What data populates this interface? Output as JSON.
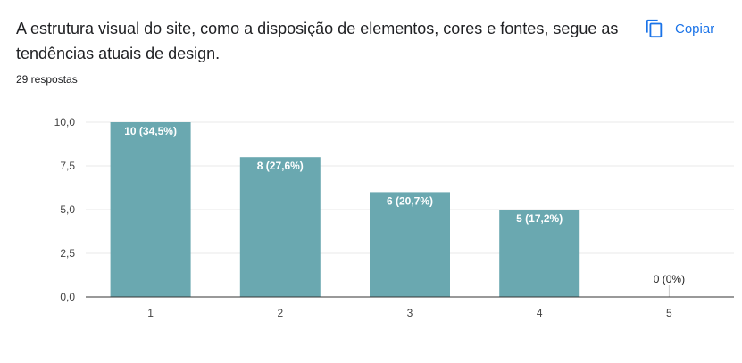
{
  "question": {
    "title": "A estrutura visual do site, como a disposição de elementos, cores e fontes, segue as tendências atuais de design.",
    "responses": "29 respostas"
  },
  "copy_button": {
    "label": "Copiar",
    "icon": "copy-icon"
  },
  "colors": {
    "bar": "#6aa8b0",
    "accent": "#1a73e8",
    "grid": "#e8e8e8",
    "axis": "#333333"
  },
  "chart_data": {
    "type": "bar",
    "categories": [
      "1",
      "2",
      "3",
      "4",
      "5"
    ],
    "values": [
      10,
      8,
      6,
      5,
      0
    ],
    "data_labels": [
      "10 (34,5%)",
      "8 (27,6%)",
      "6 (20,7%)",
      "5 (17,2%)",
      "0 (0%)"
    ],
    "y_ticks": [
      "0,0",
      "2,5",
      "5,0",
      "7,5",
      "10,0"
    ],
    "ylim": [
      0,
      10
    ],
    "grid": true,
    "title": "",
    "xlabel": "",
    "ylabel": ""
  }
}
